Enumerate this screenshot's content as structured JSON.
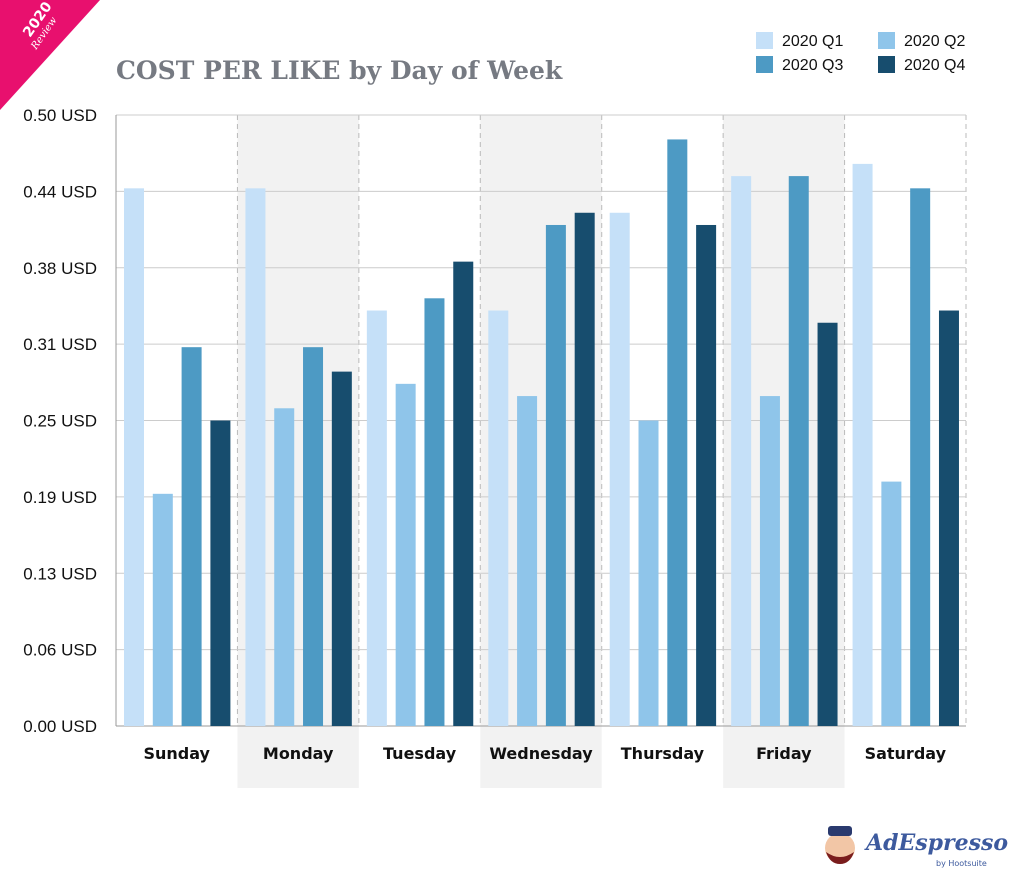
{
  "badge": {
    "year": "2020",
    "label": "Review",
    "color": "#e8106e"
  },
  "logo": {
    "name": "AdEspresso",
    "sub": "by Hootsuite",
    "color": "#3d5a9e"
  },
  "chart_data": {
    "type": "bar",
    "title": "COST PER LIKE by Day of Week",
    "xlabel": "",
    "ylabel": "",
    "ylim": [
      0,
      0.5
    ],
    "yticks": [
      0,
      0.0625,
      0.125,
      0.1875,
      0.25,
      0.3125,
      0.375,
      0.4375,
      0.5
    ],
    "ytick_labels": [
      "0.00 USD",
      "0.06 USD",
      "0.13 USD",
      "0.19 USD",
      "0.25 USD",
      "0.31 USD",
      "0.38 USD",
      "0.44 USD",
      "0.50 USD"
    ],
    "grid": true,
    "legend_position": "top-right",
    "categories": [
      "Sunday",
      "Monday",
      "Tuesday",
      "Wednesday",
      "Thursday",
      "Friday",
      "Saturday"
    ],
    "series": [
      {
        "name": "2020 Q1",
        "color": "#c5e0f8",
        "values": [
          0.44,
          0.44,
          0.34,
          0.34,
          0.42,
          0.45,
          0.46
        ]
      },
      {
        "name": "2020 Q2",
        "color": "#8fc5ea",
        "values": [
          0.19,
          0.26,
          0.28,
          0.27,
          0.25,
          0.27,
          0.2
        ]
      },
      {
        "name": "2020 Q3",
        "color": "#4d9ac4",
        "values": [
          0.31,
          0.31,
          0.35,
          0.41,
          0.48,
          0.45,
          0.44
        ]
      },
      {
        "name": "2020 Q4",
        "color": "#174d6e",
        "values": [
          0.25,
          0.29,
          0.38,
          0.42,
          0.41,
          0.33,
          0.34
        ]
      }
    ]
  }
}
